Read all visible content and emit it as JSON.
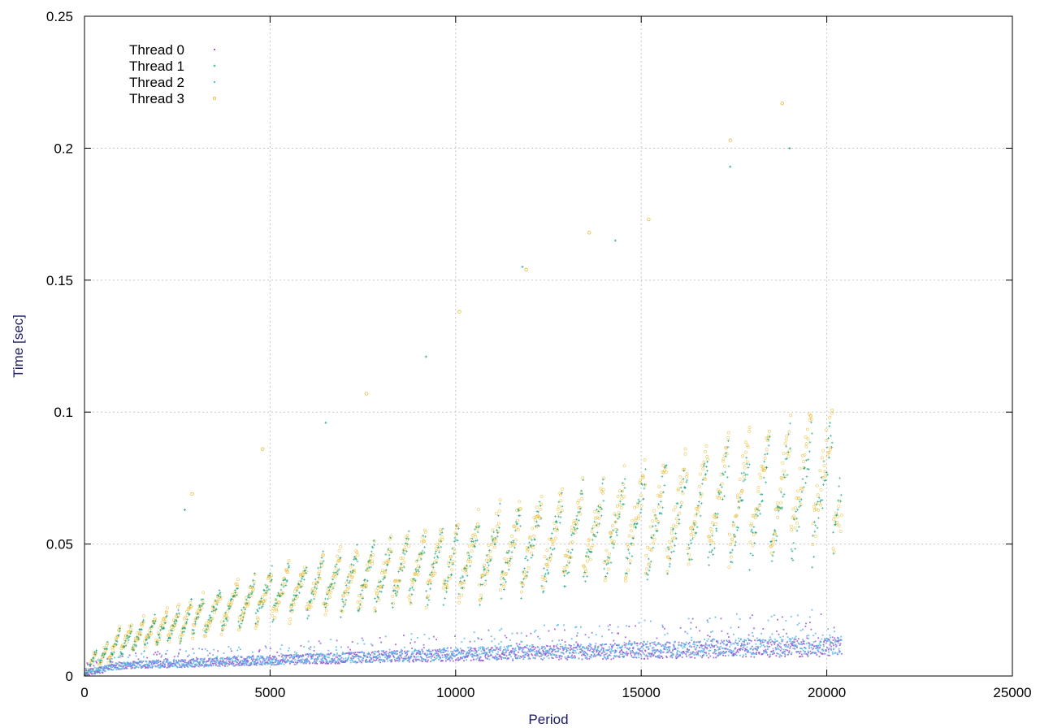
{
  "chart_data": {
    "type": "scatter",
    "title": "",
    "xlabel": "Period",
    "ylabel": "Time [sec]",
    "xlim": [
      0,
      25000
    ],
    "ylim": [
      0,
      0.25
    ],
    "x_ticks": [
      "0",
      "5000",
      "10000",
      "15000",
      "20000",
      "25000"
    ],
    "y_ticks": [
      "0",
      "0.05",
      "0.1",
      "0.15",
      "0.2",
      "0.25"
    ],
    "grid": true,
    "legend_position": "top-left",
    "series": [
      {
        "name": "Thread 0",
        "color": "#9455d3",
        "marker": "dot",
        "trend_x": [
          0,
          1000,
          5000,
          10000,
          15000,
          20000,
          20400
        ],
        "trend_y": [
          0.001,
          0.004,
          0.006,
          0.008,
          0.0095,
          0.011,
          0.0115
        ]
      },
      {
        "name": "Thread 1",
        "color": "#009e73",
        "marker": "plus",
        "trend_x": [
          0,
          1000,
          5000,
          10000,
          15000,
          20000,
          20400
        ],
        "trend_y": [
          0.002,
          0.012,
          0.03,
          0.042,
          0.055,
          0.07,
          0.075
        ],
        "outliers": [
          [
            2700,
            0.063
          ],
          [
            6500,
            0.096
          ],
          [
            9200,
            0.121
          ],
          [
            11800,
            0.155
          ],
          [
            14300,
            0.165
          ],
          [
            17400,
            0.193
          ],
          [
            19000,
            0.2
          ]
        ]
      },
      {
        "name": "Thread 2",
        "color": "#56b4e9",
        "marker": "dot",
        "trend_x": [
          0,
          1000,
          5000,
          10000,
          15000,
          20000,
          20400
        ],
        "trend_y": [
          0.001,
          0.004,
          0.006,
          0.0085,
          0.01,
          0.012,
          0.012
        ]
      },
      {
        "name": "Thread 3",
        "color": "#e6b31a",
        "marker": "circle",
        "trend_x": [
          0,
          1000,
          5000,
          10000,
          15000,
          20000,
          20400
        ],
        "trend_y": [
          0.002,
          0.013,
          0.03,
          0.043,
          0.058,
          0.075,
          0.065
        ],
        "outliers": [
          [
            2900,
            0.069
          ],
          [
            4800,
            0.086
          ],
          [
            7600,
            0.107
          ],
          [
            10100,
            0.138
          ],
          [
            11900,
            0.154
          ],
          [
            13600,
            0.168
          ],
          [
            15200,
            0.173
          ],
          [
            17400,
            0.203
          ],
          [
            18800,
            0.217
          ]
        ]
      }
    ]
  }
}
